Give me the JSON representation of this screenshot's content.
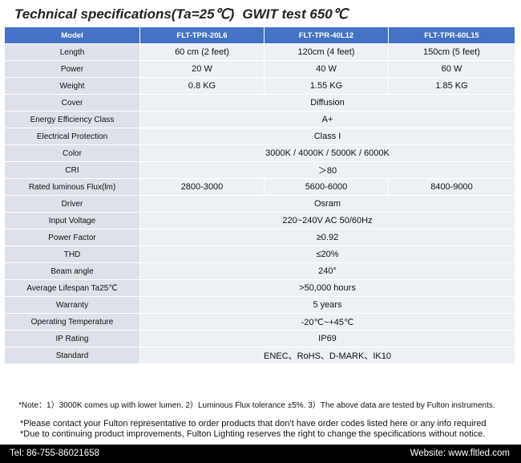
{
  "title": {
    "main": "Technical specifications(Ta=25℃)",
    "sub": "GWIT test 650℃"
  },
  "table": {
    "header": [
      "Model",
      "FLT-TPR-20L6",
      "FLT-TPR-40L12",
      "FLT-TPR-60L15"
    ],
    "rows": [
      {
        "label": "Length",
        "values": [
          "60 cm (2 feet)",
          "120cm (4 feet)",
          "150cm (5 feet)"
        ]
      },
      {
        "label": "Power",
        "values": [
          "20 W",
          "40 W",
          "60 W"
        ]
      },
      {
        "label": "Weight",
        "values": [
          "0.8 KG",
          "1.55 KG",
          "1.85 KG"
        ]
      },
      {
        "label": "Cover",
        "values": [
          "Diffusion"
        ]
      },
      {
        "label": "Energy Efficiency Class",
        "values": [
          "A+"
        ]
      },
      {
        "label": "Electrical Protection",
        "values": [
          "Class I"
        ]
      },
      {
        "label": "Color",
        "values": [
          "3000K / 4000K / 5000K / 6000K"
        ]
      },
      {
        "label": "CRI",
        "values": [
          "＞80"
        ]
      },
      {
        "label": "Rated luminous Flux(lm)",
        "values": [
          "2800-3000",
          "5600-6000",
          "8400-9000"
        ]
      },
      {
        "label": "Driver",
        "values": [
          "Osram"
        ]
      },
      {
        "label": "Input Voltage",
        "values": [
          "220~240V AC    50/60Hz"
        ]
      },
      {
        "label": "Power Factor",
        "values": [
          "≥0.92"
        ]
      },
      {
        "label": "THD",
        "values": [
          "≤20%"
        ]
      },
      {
        "label": "Beam angle",
        "values": [
          "240°"
        ]
      },
      {
        "label": "Average Lifespan Ta25℃",
        "values": [
          ">50,000 hours"
        ]
      },
      {
        "label": "Warranty",
        "values": [
          "5 years"
        ]
      },
      {
        "label": "Operating Temperature",
        "values": [
          "-20℃~+45℃"
        ]
      },
      {
        "label": "IP Rating",
        "values": [
          "IP69"
        ]
      },
      {
        "label": "Standard",
        "values": [
          "ENEC、RoHS、D-MARK、IK10"
        ]
      }
    ]
  },
  "notes": "*Note：1）3000K comes up with lower lumen.    2）Luminous Flux  tolerance ±5%.    3）The above data are tested by Fulton instruments.",
  "contact": {
    "line1": "*Please contact your Fulton representative to order products that don’t have order codes listed here or any info required",
    "line2": "*Due to continuing product improvements, Fulton Lighting reserves the right to change the specifications without notice."
  },
  "footer": {
    "tel": "Tel: 86-755-86021658",
    "website": "Website: www.fltled.com"
  }
}
